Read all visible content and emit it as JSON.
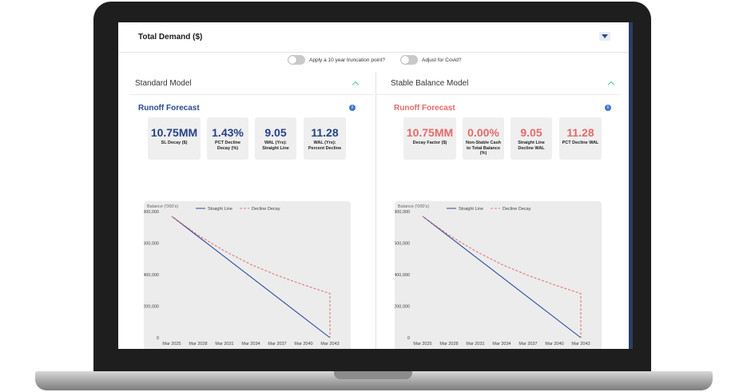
{
  "header": {
    "title": "Total Demand ($)"
  },
  "toggles": [
    {
      "label": "Apply a 10 year truncation point?"
    },
    {
      "label": "Adjust for Covid?"
    }
  ],
  "standard_model": {
    "title": "Standard Model",
    "section_title": "Runoff Forecast",
    "metrics": [
      {
        "value": "10.75MM",
        "label": "SL Decay ($)"
      },
      {
        "value": "1.43%",
        "label": "PCT Decline Decay (%)"
      },
      {
        "value": "9.05",
        "label": "WAL (Yrs): Straight Line"
      },
      {
        "value": "11.28",
        "label": "WAL (Yrs): Percent Decline"
      }
    ]
  },
  "stable_model": {
    "title": "Stable Balance Model",
    "section_title": "Runoff Forecast",
    "metrics": [
      {
        "value": "10.75MM",
        "label": "Decay Factor ($)"
      },
      {
        "value": "0.00%",
        "label": "Non-Stable Cash to Total Balance (%)"
      },
      {
        "value": "9.05",
        "label": "Straight Line Decline WAL"
      },
      {
        "value": "11.28",
        "label": "PCT Decline WAL"
      }
    ]
  },
  "colors": {
    "primary": "#24418a",
    "accent_red": "#e46a6a",
    "teal": "#4fbcb1",
    "info_blue": "#3f78c8"
  },
  "icons": [
    "collapse-down-icon",
    "chevron-up-icon",
    "info-icon"
  ],
  "chart_data": [
    {
      "type": "line",
      "ylabel": "Balance ('000's)",
      "ylim": [
        0,
        800000
      ],
      "yticks": [
        "0",
        "200,000",
        "400,000",
        "600,000",
        "800,000"
      ],
      "xticks": [
        "Mar 2025",
        "Mar 2028",
        "Mar 2031",
        "Mar 2034",
        "Mar 2037",
        "Mar 2040",
        "Mar 2043"
      ],
      "legend_position": "top",
      "series": [
        {
          "name": "Straight Line",
          "color": "#2a4a9c",
          "style": "solid",
          "x": [
            "Mar 2025",
            "Mar 2043"
          ],
          "y": [
            770000,
            0
          ]
        },
        {
          "name": "Decline Decay",
          "color": "#e57373",
          "style": "dashed",
          "x": [
            "Mar 2025",
            "Mar 2028",
            "Mar 2031",
            "Mar 2034",
            "Mar 2037",
            "Mar 2040",
            "Mar 2043",
            "Mar 2043"
          ],
          "y": [
            770000,
            650000,
            550000,
            465000,
            395000,
            335000,
            280000,
            0
          ]
        }
      ]
    },
    {
      "type": "line",
      "ylabel": "Balance ('000's)",
      "ylim": [
        0,
        800000
      ],
      "yticks": [
        "0",
        "200,000",
        "400,000",
        "600,000",
        "800,000"
      ],
      "xticks": [
        "Mar 2025",
        "Mar 2028",
        "Mar 2031",
        "Mar 2034",
        "Mar 2037",
        "Mar 2040",
        "Mar 2043"
      ],
      "legend_position": "top",
      "series": [
        {
          "name": "Straight Line",
          "color": "#2a4a9c",
          "style": "solid",
          "x": [
            "Mar 2025",
            "Mar 2043"
          ],
          "y": [
            770000,
            0
          ]
        },
        {
          "name": "Decline Decay",
          "color": "#e57373",
          "style": "dashed",
          "x": [
            "Mar 2025",
            "Mar 2028",
            "Mar 2031",
            "Mar 2034",
            "Mar 2037",
            "Mar 2040",
            "Mar 2043",
            "Mar 2043"
          ],
          "y": [
            770000,
            650000,
            550000,
            465000,
            395000,
            335000,
            280000,
            0
          ]
        }
      ]
    }
  ]
}
